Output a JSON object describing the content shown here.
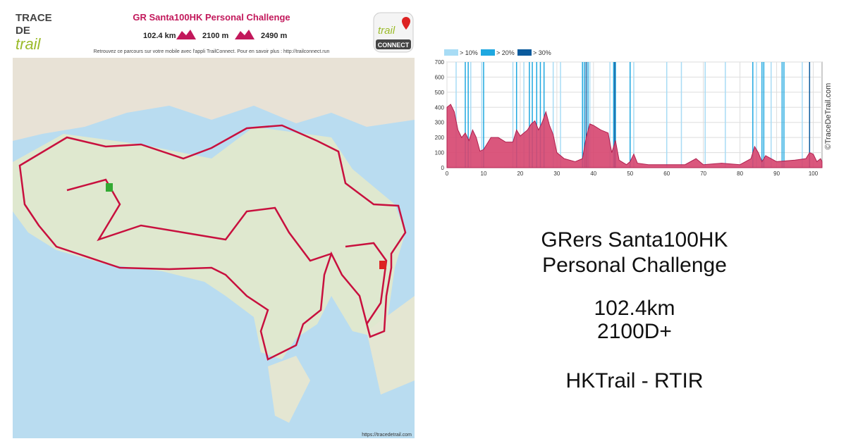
{
  "header": {
    "logo": [
      "TRACE",
      "DE",
      "trail"
    ],
    "title": "GR Santa100HK Personal Challenge",
    "distance": "102.4 km",
    "ascent": "2100 m",
    "descent": "2490 m",
    "subtitle": "Retrouvez ce parcours sur votre mobile avec l'appli TrailConnect. Pour en savoir plus : http://trailconnect.run",
    "app_logo": [
      "trail",
      "CONNECT"
    ]
  },
  "map": {
    "credit": "https://tracedetrail.com"
  },
  "chart_data": {
    "type": "area",
    "color": "#d6456f",
    "x": [
      0,
      1,
      2,
      3,
      4,
      5,
      6,
      7,
      8,
      9,
      10,
      12,
      14,
      16,
      18,
      19,
      20,
      22,
      23,
      24,
      25,
      26,
      27,
      28,
      29,
      30,
      32,
      35,
      37,
      38,
      39,
      40,
      42,
      44,
      45,
      46,
      47,
      49,
      50,
      51,
      52,
      55,
      60,
      65,
      68,
      70,
      75,
      80,
      83,
      84,
      85,
      86,
      87,
      90,
      95,
      98,
      99,
      100,
      101,
      102,
      102.4
    ],
    "values": [
      400,
      420,
      370,
      250,
      200,
      230,
      180,
      250,
      200,
      110,
      120,
      200,
      200,
      170,
      170,
      250,
      210,
      250,
      290,
      310,
      250,
      300,
      370,
      280,
      220,
      100,
      60,
      40,
      60,
      200,
      290,
      280,
      250,
      230,
      100,
      180,
      50,
      20,
      40,
      90,
      30,
      20,
      20,
      20,
      60,
      20,
      30,
      20,
      60,
      140,
      100,
      40,
      80,
      40,
      50,
      60,
      100,
      90,
      40,
      60,
      40
    ],
    "xlim": [
      0,
      102.4
    ],
    "ylim": [
      0,
      700
    ],
    "xticks": [
      0,
      10,
      20,
      30,
      40,
      50,
      60,
      70,
      80,
      90,
      100
    ],
    "yticks": [
      0,
      100,
      200,
      300,
      400,
      500,
      600,
      700
    ],
    "grid": true,
    "slope_bands": [
      {
        "name": "> 10%",
        "color": "#a8dcf5",
        "x": [
          2.5,
          6.5,
          9.5,
          18,
          21,
          29,
          31,
          39,
          44.5,
          51,
          60,
          64,
          70.5,
          76,
          84.5,
          88.5,
          97
        ]
      },
      {
        "name": "> 20%",
        "color": "#1fa8e0",
        "x": [
          5,
          5.8,
          10,
          19,
          22.5,
          23.3,
          24.5,
          25.5,
          26.5,
          37,
          37.5,
          38.5,
          45.5,
          46,
          50,
          83.5,
          86,
          86.5,
          91.5,
          92
        ]
      },
      {
        "name": "> 30%",
        "color": "#0a5a9c",
        "x": [
          38,
          45.8,
          99
        ]
      }
    ]
  },
  "credit": "©TraceDeTrail.com",
  "summary": {
    "title": [
      "GRers Santa100HK",
      "Personal Challenge"
    ],
    "distance": "102.4km",
    "ascent": "2100D+",
    "author": "HKTrail - RTIR"
  }
}
